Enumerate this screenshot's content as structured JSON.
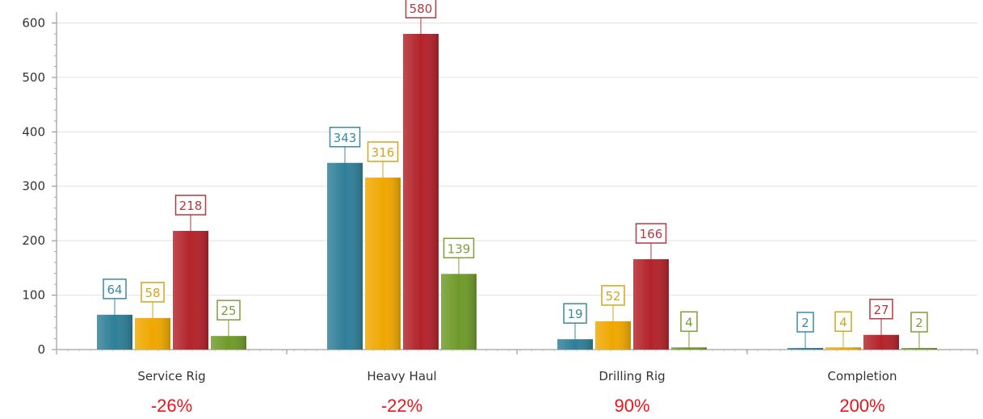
{
  "chart_data": {
    "type": "bar",
    "title": "",
    "xlabel": "",
    "ylabel": "",
    "categories": [
      "Service Rig",
      "Heavy Haul",
      "Drilling Rig",
      "Completion"
    ],
    "ylim": [
      0,
      620
    ],
    "yticks": [
      0,
      100,
      200,
      300,
      400,
      500,
      600
    ],
    "grid": true,
    "legend": "none",
    "series": [
      {
        "values": [
          64,
          343,
          19,
          2
        ],
        "color": "#2f7f98",
        "label_color": "#3a8aa3"
      },
      {
        "values": [
          58,
          316,
          52,
          4
        ],
        "color": "#f0a800",
        "label_color": "#d4a41c"
      },
      {
        "values": [
          218,
          580,
          166,
          27
        ],
        "color": "#b3232a",
        "label_color": "#b23a40"
      },
      {
        "values": [
          25,
          139,
          4,
          2
        ],
        "color": "#6f9a2a",
        "label_color": "#7f9d3a"
      }
    ],
    "annotations": [
      {
        "category": "Service Rig",
        "text": "-26%"
      },
      {
        "category": "Heavy Haul",
        "text": "-22%"
      },
      {
        "category": "Drilling Rig",
        "text": "90%"
      },
      {
        "category": "Completion",
        "text": "200%"
      }
    ],
    "annotation_color": "#e8161b"
  }
}
